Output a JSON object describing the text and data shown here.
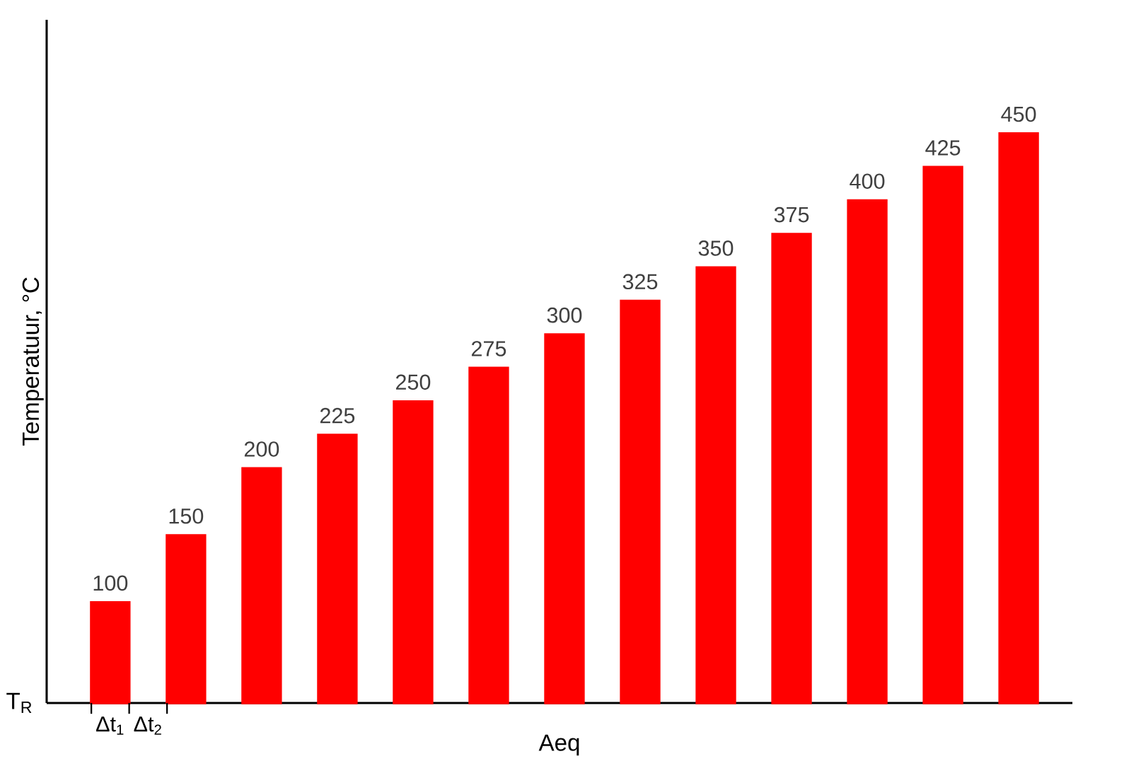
{
  "chart_data": {
    "type": "bar",
    "xlabel": "Aeq",
    "ylabel": "Temperatuur, °C",
    "categories": [
      null,
      null,
      null,
      null,
      null,
      null,
      null,
      null,
      null,
      null,
      null,
      null,
      null
    ],
    "values": [
      100,
      150,
      200,
      225,
      250,
      275,
      300,
      325,
      350,
      375,
      400,
      425,
      450
    ],
    "color": "#ff0000",
    "data_labels": true,
    "ylim": [
      25,
      535
    ],
    "annotations": [
      "T$_{R}$",
      "Δt$_{1}$",
      "Δt$_{2}$"
    ]
  }
}
